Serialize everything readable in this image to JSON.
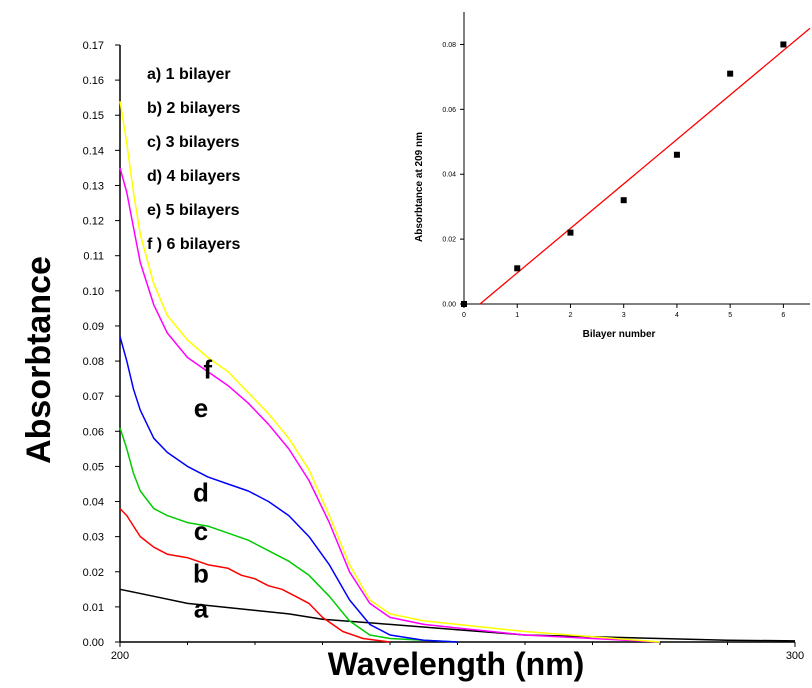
{
  "chart_data": [
    {
      "type": "line",
      "xlabel": "Wavelength (nm)",
      "ylabel": "Absorbtance",
      "xlim": [
        200,
        300
      ],
      "ylim": [
        0,
        0.17
      ],
      "x_ticks": [
        "200",
        "300"
      ],
      "y_ticks": [
        "0.00",
        "0.01",
        "0.02",
        "0.03",
        "0.04",
        "0.05",
        "0.06",
        "0.07",
        "0.08",
        "0.09",
        "0.10",
        "0.11",
        "0.12",
        "0.13",
        "0.14",
        "0.15",
        "0.16",
        "0.17"
      ],
      "legend": {
        "position": "top-left",
        "entries": [
          "a) 1 bilayer",
          "b)  2 bilayers",
          "c)  3 bilayers",
          "d)  4 bilayers",
          "e)  5 bilayers",
          "f )  6 bilayers"
        ]
      },
      "series": [
        {
          "label": "a",
          "color": "#000000",
          "x": [
            200,
            205,
            210,
            215,
            220,
            225,
            230,
            240,
            250,
            260,
            270,
            280,
            290,
            300
          ],
          "y": [
            0.015,
            0.013,
            0.011,
            0.01,
            0.009,
            0.008,
            0.0065,
            0.005,
            0.0035,
            0.002,
            0.0015,
            0.001,
            0.0005,
            0.0003
          ]
        },
        {
          "label": "b",
          "color": "#ff0000",
          "x": [
            200,
            201,
            202,
            203,
            205,
            207,
            210,
            213,
            216,
            218,
            220,
            222,
            224,
            226,
            228,
            230,
            233,
            236,
            240
          ],
          "y": [
            0.038,
            0.036,
            0.033,
            0.03,
            0.027,
            0.025,
            0.024,
            0.022,
            0.021,
            0.019,
            0.018,
            0.016,
            0.015,
            0.013,
            0.011,
            0.007,
            0.003,
            0.001,
            0.0
          ]
        },
        {
          "label": "c",
          "color": "#00cc00",
          "x": [
            200,
            201,
            202,
            203,
            205,
            207,
            210,
            213,
            216,
            219,
            222,
            225,
            228,
            231,
            234,
            237,
            240,
            245,
            250
          ],
          "y": [
            0.061,
            0.055,
            0.048,
            0.043,
            0.038,
            0.036,
            0.034,
            0.033,
            0.031,
            0.029,
            0.026,
            0.023,
            0.019,
            0.013,
            0.006,
            0.002,
            0.001,
            0.0005,
            0.0
          ]
        },
        {
          "label": "d",
          "color": "#0000ff",
          "x": [
            200,
            201,
            202,
            203,
            205,
            207,
            210,
            213,
            216,
            219,
            222,
            225,
            228,
            231,
            234,
            237,
            240,
            245,
            250
          ],
          "y": [
            0.087,
            0.08,
            0.072,
            0.066,
            0.058,
            0.054,
            0.05,
            0.047,
            0.045,
            0.043,
            0.04,
            0.036,
            0.03,
            0.022,
            0.012,
            0.005,
            0.002,
            0.0005,
            0.0
          ]
        },
        {
          "label": "e",
          "color": "#ff00ff",
          "x": [
            200,
            201,
            202,
            203,
            205,
            207,
            210,
            213,
            216,
            219,
            222,
            225,
            228,
            231,
            234,
            237,
            240,
            245,
            250,
            255,
            260,
            270,
            280
          ],
          "y": [
            0.135,
            0.128,
            0.118,
            0.108,
            0.096,
            0.088,
            0.081,
            0.077,
            0.073,
            0.068,
            0.062,
            0.055,
            0.046,
            0.034,
            0.02,
            0.011,
            0.007,
            0.005,
            0.004,
            0.003,
            0.002,
            0.001,
            0.0
          ]
        },
        {
          "label": "f",
          "color": "#ffff00",
          "x": [
            200,
            201,
            202,
            203,
            205,
            207,
            210,
            213,
            216,
            219,
            222,
            225,
            228,
            231,
            234,
            237,
            240,
            245,
            250,
            255,
            260,
            270,
            280
          ],
          "y": [
            0.154,
            0.142,
            0.128,
            0.116,
            0.102,
            0.093,
            0.086,
            0.081,
            0.077,
            0.071,
            0.065,
            0.058,
            0.049,
            0.036,
            0.022,
            0.012,
            0.008,
            0.006,
            0.005,
            0.004,
            0.003,
            0.0015,
            0.0
          ]
        }
      ],
      "curve_labels": [
        {
          "text": "f",
          "x": 213,
          "y": 0.075
        },
        {
          "text": "e",
          "x": 212,
          "y": 0.064
        },
        {
          "text": "d",
          "x": 212,
          "y": 0.04
        },
        {
          "text": "c",
          "x": 212,
          "y": 0.029
        },
        {
          "text": "b",
          "x": 212,
          "y": 0.017
        },
        {
          "text": "a",
          "x": 212,
          "y": 0.007
        }
      ]
    },
    {
      "type": "scatter",
      "position": "inset top-right",
      "xlabel": "Bilayer number",
      "ylabel": "Absorbtance at 209 nm",
      "xlim": [
        0,
        6.5
      ],
      "ylim": [
        0,
        0.09
      ],
      "x_ticks": [
        "0",
        "1",
        "2",
        "3",
        "4",
        "5",
        "6"
      ],
      "y_ticks": [
        "0.00",
        "0.02",
        "0.04",
        "0.06",
        "0.08"
      ],
      "points": {
        "x": [
          0,
          1,
          2,
          3,
          4,
          5,
          6
        ],
        "y": [
          0.0,
          0.011,
          0.022,
          0.032,
          0.046,
          0.071,
          0.08
        ]
      },
      "fit_line": {
        "color": "#ff0000",
        "x": [
          0.3,
          6.5
        ],
        "y": [
          0.0,
          0.085
        ]
      }
    }
  ]
}
